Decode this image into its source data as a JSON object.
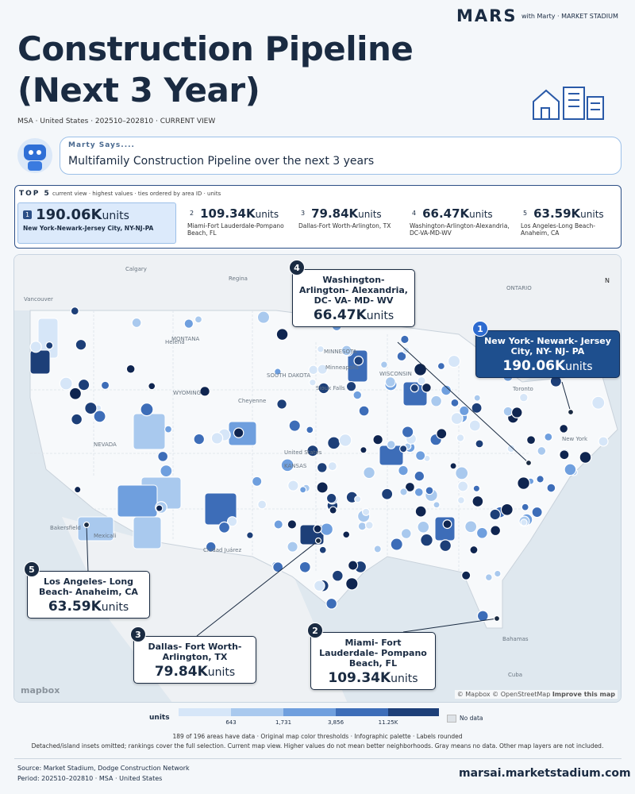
{
  "header": {
    "brand": "MARS",
    "tagline": "with Marty · MARKET STADIUM",
    "title": "Construction Pipeline (Next 3 Year)",
    "subtitle": "MSA · United States · 202510–202810 · CURRENT VIEW"
  },
  "marty": {
    "label": "Marty Says....",
    "message": "Multifamily Construction Pipeline over the next 3 years"
  },
  "top5": {
    "heading": "TOP 5",
    "note": "current view · highest values · ties ordered by area ID · units",
    "items": [
      {
        "rank": "1",
        "value": "190.06K",
        "unit": "units",
        "name": "New York-Newark-Jersey City, NY-NJ-PA"
      },
      {
        "rank": "2",
        "value": "109.34K",
        "unit": "units",
        "name": "Miami-Fort Lauderdale-Pompano Beach, FL"
      },
      {
        "rank": "3",
        "value": "79.84K",
        "unit": "units",
        "name": "Dallas-Fort Worth-Arlington, TX"
      },
      {
        "rank": "4",
        "value": "66.47K",
        "unit": "units",
        "name": "Washington-Arlington-Alexandria, DC-VA-MD-WV"
      },
      {
        "rank": "5",
        "value": "63.59K",
        "unit": "units",
        "name": "Los Angeles-Long Beach-Anaheim, CA"
      }
    ]
  },
  "map": {
    "callouts": [
      {
        "rank": "4",
        "name": "Washington- Arlington- Alexandria, DC- VA- MD- WV",
        "value": "66.47K",
        "unit": "units"
      },
      {
        "rank": "1",
        "name": "New York- Newark- Jersey City, NY- NJ- PA",
        "value": "190.06K",
        "unit": "units"
      },
      {
        "rank": "5",
        "name": "Los Angeles- Long Beach- Anaheim, CA",
        "value": "63.59K",
        "unit": "units"
      },
      {
        "rank": "3",
        "name": "Dallas- Fort Worth- Arlington, TX",
        "value": "79.84K",
        "unit": "units"
      },
      {
        "rank": "2",
        "name": "Miami- Fort Lauderdale- Pompano Beach, FL",
        "value": "109.34K",
        "unit": "units"
      }
    ],
    "labels": [
      "Calgary",
      "Regina",
      "Vancouver",
      "Helena",
      "MONTANA",
      "WYOMING",
      "NEVADA",
      "Cheyenne",
      "United States",
      "KANSAS",
      "MINNESOTA",
      "Minneapolis",
      "SOUTH DAKOTA",
      "Sioux Falls",
      "WISCONSIN",
      "Toronto",
      "New York",
      "Bakersfield",
      "Mexicali",
      "Ciudad Juárez",
      "Bahamas",
      "Cuba",
      "ONTARIO"
    ],
    "compass": "N",
    "logo": "mapbox",
    "attribution": "© Mapbox © OpenStreetMap",
    "improve": "Improve this map"
  },
  "legend": {
    "title": "units",
    "ticks": [
      "643",
      "1,731",
      "3,856",
      "11.25K"
    ],
    "nodata": "No data"
  },
  "notes": [
    "189 of 196 areas have data · Original map color thresholds · Infographic palette · Labels rounded",
    "Detached/island insets omitted; rankings cover the full selection. Current map view. Higher values do not mean better neighborhoods. Gray means no data. Other map layers are not included."
  ],
  "footer": {
    "source": "Source: Market Stadium, Dodge Construction Network",
    "period": "Period: 202510–202810 · MSA · United States",
    "site": "marsai.marketstadium.com"
  }
}
